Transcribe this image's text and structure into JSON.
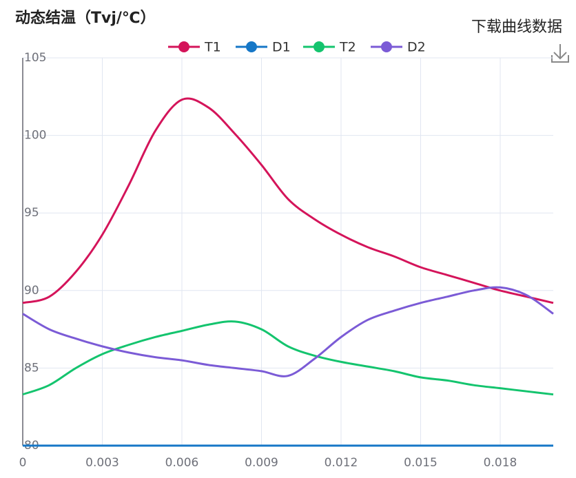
{
  "toolbar": {
    "download": "下载曲线数据"
  },
  "chart_data": {
    "type": "line",
    "title": "动态结温（Tvj/℃）",
    "x": [
      0,
      0.001,
      0.002,
      0.003,
      0.004,
      0.005,
      0.006,
      0.007,
      0.008,
      0.009,
      0.01,
      0.011,
      0.012,
      0.013,
      0.014,
      0.015,
      0.016,
      0.017,
      0.018,
      0.019,
      0.02
    ],
    "series": [
      {
        "name": "T1",
        "color": "#d4145a",
        "values": [
          89.2,
          89.6,
          91.2,
          93.6,
          96.8,
          100.3,
          102.3,
          101.8,
          100.1,
          98.1,
          95.9,
          94.6,
          93.6,
          92.8,
          92.2,
          91.5,
          91.0,
          90.5,
          90.0,
          89.6,
          89.2
        ]
      },
      {
        "name": "D1",
        "color": "#1677c7",
        "values": [
          80,
          80,
          80,
          80,
          80,
          80,
          80,
          80,
          80,
          80,
          80,
          80,
          80,
          80,
          80,
          80,
          80,
          80,
          80,
          80,
          80
        ]
      },
      {
        "name": "T2",
        "color": "#14c46e",
        "values": [
          83.3,
          83.9,
          85.0,
          85.9,
          86.5,
          87.0,
          87.4,
          87.8,
          88.0,
          87.5,
          86.4,
          85.8,
          85.4,
          85.1,
          84.8,
          84.4,
          84.2,
          83.9,
          83.7,
          83.5,
          83.3
        ]
      },
      {
        "name": "D2",
        "color": "#7b5bd6",
        "values": [
          88.5,
          87.5,
          86.9,
          86.4,
          86.0,
          85.7,
          85.5,
          85.2,
          85.0,
          84.8,
          84.5,
          85.6,
          87.0,
          88.1,
          88.7,
          89.2,
          89.6,
          90.0,
          90.2,
          89.7,
          88.5
        ]
      }
    ],
    "xlim": [
      0,
      0.02
    ],
    "xticks": [
      0,
      0.003,
      0.006,
      0.009,
      0.012,
      0.015,
      0.018
    ],
    "ylim": [
      80,
      105
    ],
    "yticks": [
      80,
      85,
      90,
      95,
      100,
      105
    ],
    "grid": true,
    "legend": "top"
  }
}
